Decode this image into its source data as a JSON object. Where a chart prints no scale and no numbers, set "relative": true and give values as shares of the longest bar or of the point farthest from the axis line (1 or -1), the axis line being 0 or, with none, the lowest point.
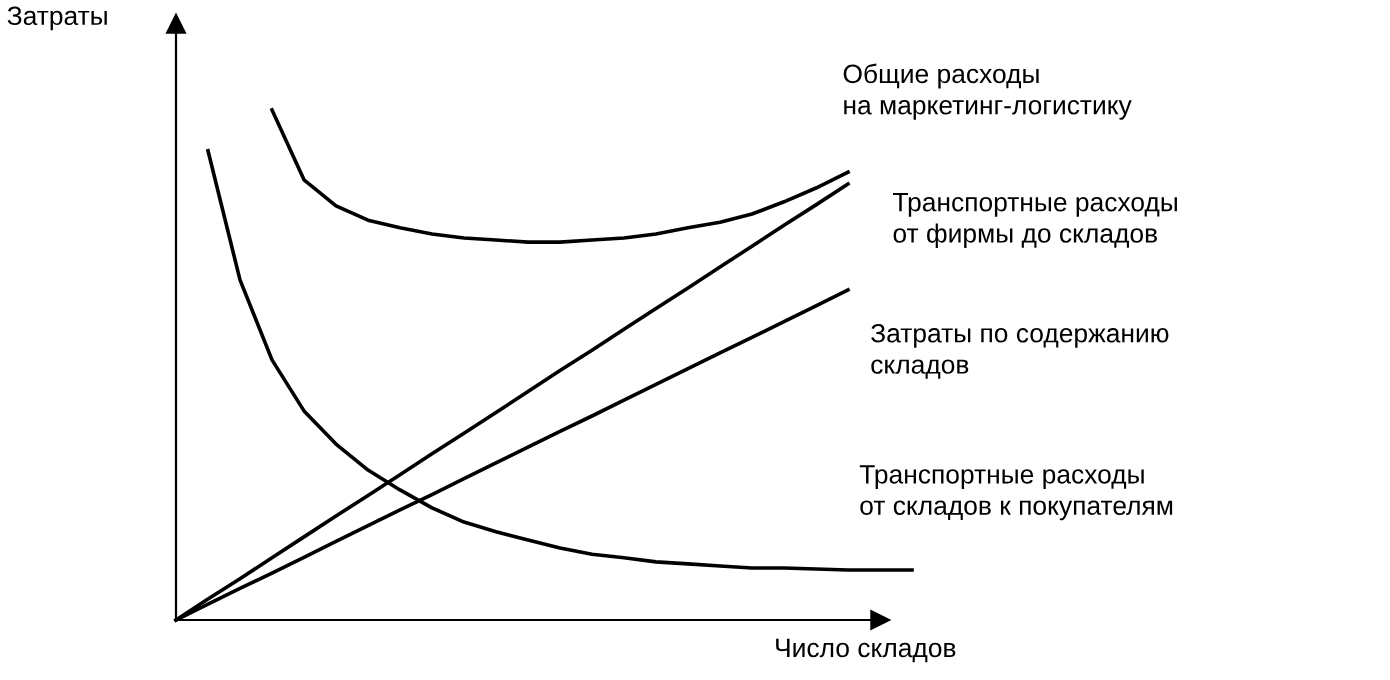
{
  "chart_data": {
    "type": "line",
    "relative": true,
    "xlabel": "Число складов",
    "ylabel": "Затраты",
    "tick_labels": false,
    "legend": false,
    "marker": "none",
    "line_style": "solid",
    "categories": [
      null,
      null,
      null,
      null,
      null,
      null,
      null,
      null,
      null,
      null,
      null,
      null,
      null,
      null,
      null,
      null,
      null,
      null,
      null,
      null,
      null,
      null,
      null,
      null
    ],
    "series": [
      {
        "name": "Общие расходы\nна маркетинг-логистику",
        "color": "#000000",
        "values": [
          null,
          null,
          null,
          1.0,
          0.863,
          0.812,
          0.784,
          0.769,
          0.757,
          0.749,
          0.745,
          0.741,
          0.741,
          0.745,
          0.749,
          0.757,
          0.769,
          0.78,
          0.796,
          0.82,
          0.847,
          0.878,
          null,
          null
        ]
      },
      {
        "name": "Транспортные расходы\nот фирмы до складов",
        "color": "#000000",
        "values": [
          0,
          0.041,
          0.081,
          0.122,
          0.163,
          0.204,
          0.244,
          0.285,
          0.326,
          0.366,
          0.407,
          0.448,
          0.489,
          0.529,
          0.57,
          0.611,
          0.651,
          0.692,
          0.733,
          0.774,
          0.814,
          0.855,
          null,
          null
        ]
      },
      {
        "name": "Затраты по содержанию\nскладов",
        "color": "#000000",
        "values": [
          0,
          0.031,
          0.062,
          0.092,
          0.123,
          0.154,
          0.185,
          0.216,
          0.246,
          0.277,
          0.308,
          0.339,
          0.37,
          0.4,
          0.431,
          0.462,
          0.493,
          0.524,
          0.554,
          0.585,
          0.616,
          0.647,
          null,
          null
        ]
      },
      {
        "name": "Транспортные расходы\nот складов к покупателям",
        "color": "#000000",
        "values": [
          null,
          0.92,
          0.667,
          0.51,
          0.41,
          0.345,
          0.294,
          0.255,
          0.22,
          0.192,
          0.173,
          0.157,
          0.141,
          0.129,
          0.122,
          0.114,
          0.11,
          0.106,
          0.102,
          0.102,
          0.1,
          0.098,
          0.098,
          0.098
        ]
      }
    ]
  }
}
